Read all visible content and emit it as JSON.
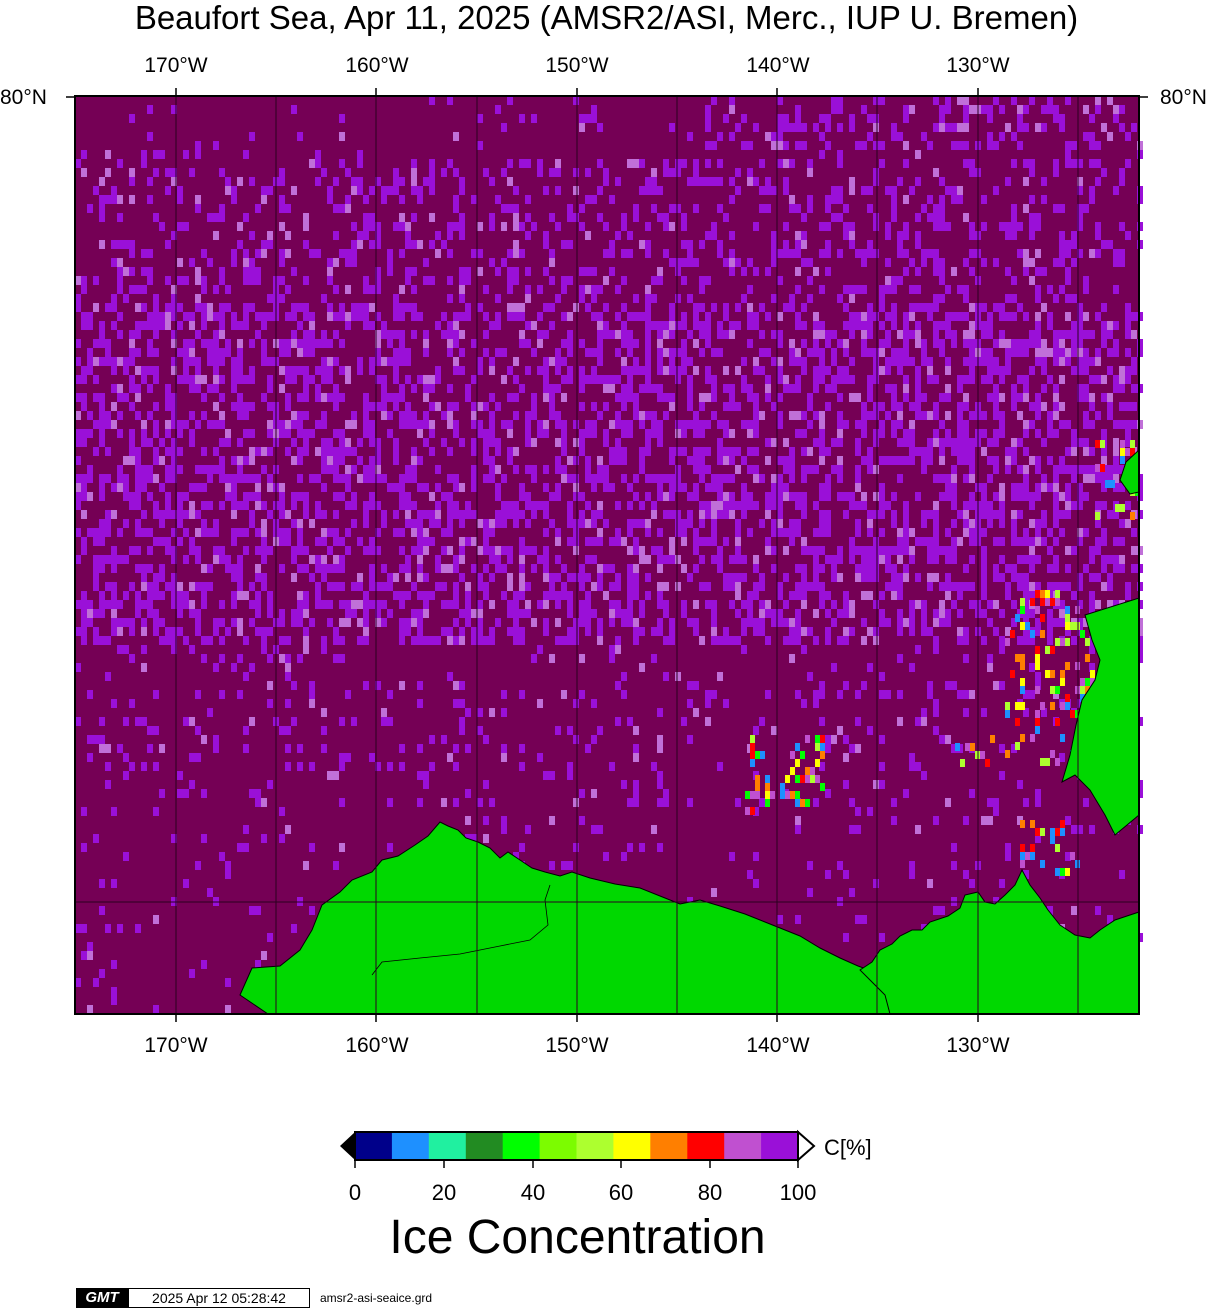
{
  "title": "Beaufort Sea, Apr 11, 2025 (AMSR2/ASI, Merc., IUP U. Bremen)",
  "map": {
    "lon_labels": [
      "170°W",
      "160°W",
      "150°W",
      "140°W",
      "130°W"
    ],
    "lat_label": "80°N",
    "colors": {
      "ocean_ice": "#750055",
      "ice_high": "#9a10d8",
      "ice_light": "#c070d8",
      "land": "#00d800",
      "grid": "#2a0020"
    }
  },
  "colorbar": {
    "ticks": [
      "0",
      "20",
      "40",
      "60",
      "80",
      "100"
    ],
    "unit": "C[%]",
    "title": "Ice Concentration",
    "colors": [
      "#00008a",
      "#1e90ff",
      "#20f0a0",
      "#228b22",
      "#00ff00",
      "#7cfc00",
      "#adff2f",
      "#ffff00",
      "#ff7f00",
      "#ff0000",
      "#c050d0",
      "#9a10d8"
    ]
  },
  "footer": {
    "logo": "GMT",
    "timestamp": "2025 Apr 12 05:28:42",
    "file": "amsr2-asi-seaice.grd"
  }
}
